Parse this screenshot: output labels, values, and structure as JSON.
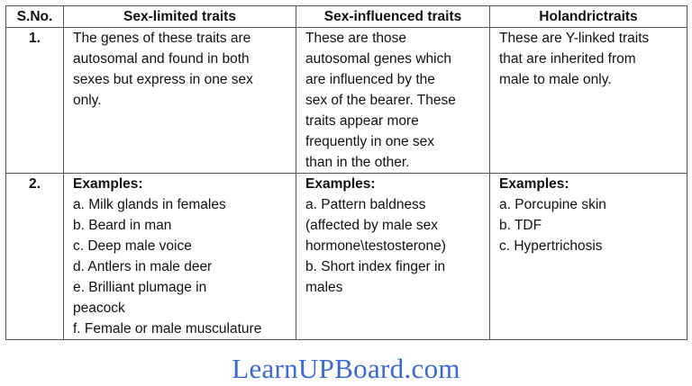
{
  "table": {
    "headers": [
      "S.No.",
      "Sex-limited traits",
      "Sex-influenced traits",
      "Holandrictraits"
    ],
    "rows": [
      {
        "sno": "1.",
        "cells": [
          {
            "lines": [
              "The genes of these traits are",
              "autosomal and found in both",
              "sexes but express in one sex",
              "only."
            ]
          },
          {
            "lines": [
              "These are those",
              "autosomal genes which",
              "are influenced by the",
              "sex of the bearer. These",
              "traits appear more",
              "frequently in one sex",
              "than in the other."
            ]
          },
          {
            "lines": [
              "These are Y-linked traits",
              "that are inherited from",
              "male to male only."
            ]
          }
        ]
      },
      {
        "sno": "2.",
        "cells": [
          {
            "heading": "Examples:",
            "lines": [
              "a. Milk glands in females",
              "b. Beard in man",
              "c. Deep male voice",
              "d. Antlers in male deer",
              "e. Brilliant plumage in",
              "peacock",
              "f. Female or male musculature"
            ]
          },
          {
            "heading": "Examples:",
            "lines": [
              "a. Pattern baldness",
              "(affected by male sex",
              "hormone\\testosterone)",
              "b. Short index finger in",
              "males"
            ]
          },
          {
            "heading": "Examples:",
            "lines": [
              "a. Porcupine skin",
              "b. TDF",
              "c. Hypertrichosis"
            ]
          }
        ]
      }
    ]
  },
  "watermark": {
    "text": "LearnUPBoard.com",
    "color": "#3a6ad6"
  }
}
